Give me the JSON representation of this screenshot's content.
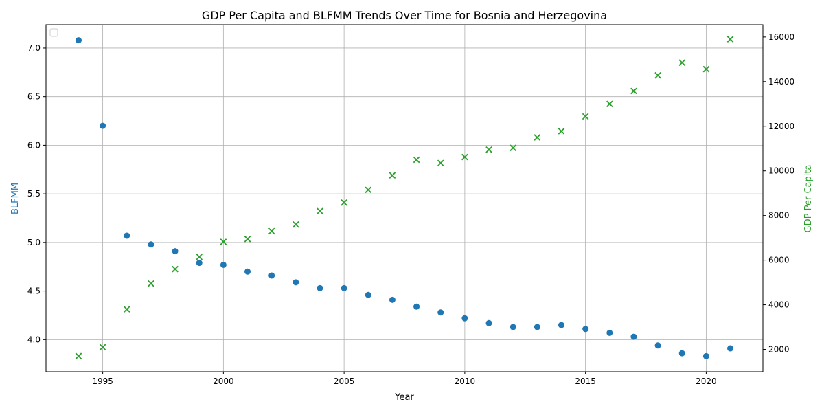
{
  "chart_data": {
    "type": "scatter",
    "title": "GDP Per Capita and BLFMM Trends Over Time for Bosnia and Herzegovina",
    "xlabel": "Year",
    "ylabel_left": "BLFMM",
    "ylabel_right": "GDP Per Capita",
    "xlim": [
      1992.65,
      2022.35
    ],
    "ylim_left": [
      3.67,
      7.24
    ],
    "ylim_right": [
      1000,
      16550
    ],
    "x_ticks": [
      1995,
      2000,
      2005,
      2010,
      2015,
      2020
    ],
    "y_left_ticks": [
      "4.0",
      "4.5",
      "5.0",
      "5.5",
      "6.0",
      "6.5",
      "7.0"
    ],
    "y_right_ticks": [
      2000,
      4000,
      6000,
      8000,
      10000,
      12000,
      14000,
      16000
    ],
    "grid": true,
    "legend": "top-left",
    "colors": {
      "blfmm": "#1f77b4",
      "gdp": "#2ca02c"
    },
    "x": [
      1994,
      1995,
      1996,
      1997,
      1998,
      1999,
      2000,
      2001,
      2002,
      2003,
      2004,
      2005,
      2006,
      2007,
      2008,
      2009,
      2010,
      2011,
      2012,
      2013,
      2014,
      2015,
      2016,
      2017,
      2018,
      2019,
      2020,
      2021
    ],
    "series": [
      {
        "key": "blfmm",
        "axis": "left",
        "marker": "circle",
        "values": [
          7.08,
          6.2,
          5.07,
          4.98,
          4.91,
          4.79,
          4.77,
          4.7,
          4.66,
          4.59,
          4.53,
          4.53,
          4.46,
          4.41,
          4.34,
          4.28,
          4.22,
          4.17,
          4.13,
          4.13,
          4.15,
          4.11,
          4.07,
          4.03,
          3.94,
          3.86,
          3.83,
          3.91
        ]
      },
      {
        "key": "gdp",
        "axis": "right",
        "marker": "x",
        "values": [
          1700,
          2100,
          3800,
          4950,
          5600,
          6150,
          6820,
          6950,
          7300,
          7600,
          8200,
          8580,
          9150,
          9800,
          10500,
          10350,
          10620,
          10950,
          11030,
          11500,
          11780,
          12440,
          13000,
          13580,
          14280,
          14850,
          14560,
          15900
        ]
      }
    ]
  }
}
